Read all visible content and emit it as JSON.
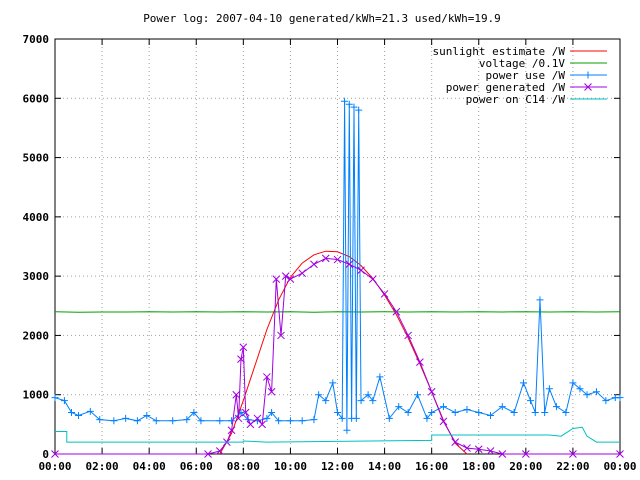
{
  "chart_data": {
    "type": "line",
    "title": "Power log: 2007-04-10 generated/kWh=21.3 used/kWh=19.9",
    "xlabel": "",
    "ylabel": "",
    "xlim": [
      0,
      24
    ],
    "ylim": [
      0,
      7000
    ],
    "x_tick_labels": [
      "00:00",
      "02:00",
      "04:00",
      "06:00",
      "08:00",
      "10:00",
      "12:00",
      "14:00",
      "16:00",
      "18:00",
      "20:00",
      "22:00",
      "00:00"
    ],
    "y_tick_labels": [
      "0",
      "1000",
      "2000",
      "3000",
      "4000",
      "5000",
      "6000",
      "7000"
    ],
    "grid": true,
    "legend_position": "top-right",
    "series": [
      {
        "name": "sunlight estimate /W",
        "color": "#ff0000",
        "marker": "none",
        "points": [
          [
            7.0,
            0
          ],
          [
            7.5,
            350
          ],
          [
            8.0,
            900
          ],
          [
            8.5,
            1500
          ],
          [
            9.0,
            2100
          ],
          [
            9.5,
            2600
          ],
          [
            10.0,
            2980
          ],
          [
            10.5,
            3220
          ],
          [
            11.0,
            3360
          ],
          [
            11.5,
            3420
          ],
          [
            12.0,
            3410
          ],
          [
            12.5,
            3330
          ],
          [
            13.0,
            3180
          ],
          [
            13.5,
            2960
          ],
          [
            14.0,
            2680
          ],
          [
            14.5,
            2350
          ],
          [
            15.0,
            1960
          ],
          [
            15.5,
            1520
          ],
          [
            16.0,
            1050
          ],
          [
            16.5,
            570
          ],
          [
            17.0,
            180
          ],
          [
            17.5,
            0
          ]
        ]
      },
      {
        "name": "voltage /0.1V",
        "color": "#00a000",
        "marker": "none",
        "points": [
          [
            0,
            2400
          ],
          [
            1,
            2390
          ],
          [
            2,
            2395
          ],
          [
            3,
            2395
          ],
          [
            4,
            2400
          ],
          [
            5,
            2395
          ],
          [
            6,
            2400
          ],
          [
            7,
            2395
          ],
          [
            8,
            2400
          ],
          [
            9,
            2395
          ],
          [
            10,
            2400
          ],
          [
            11,
            2390
          ],
          [
            12,
            2400
          ],
          [
            13,
            2395
          ],
          [
            14,
            2400
          ],
          [
            15,
            2395
          ],
          [
            16,
            2400
          ],
          [
            17,
            2395
          ],
          [
            18,
            2400
          ],
          [
            19,
            2395
          ],
          [
            20,
            2400
          ],
          [
            21,
            2395
          ],
          [
            22,
            2400
          ],
          [
            23,
            2395
          ],
          [
            24,
            2400
          ]
        ]
      },
      {
        "name": "power use /W",
        "color": "#0080ff",
        "marker": "plus",
        "points": [
          [
            0,
            950
          ],
          [
            0.4,
            900
          ],
          [
            0.7,
            700
          ],
          [
            1.0,
            650
          ],
          [
            1.5,
            720
          ],
          [
            1.9,
            580
          ],
          [
            2.5,
            560
          ],
          [
            3.0,
            600
          ],
          [
            3.5,
            560
          ],
          [
            3.9,
            650
          ],
          [
            4.3,
            560
          ],
          [
            5.0,
            560
          ],
          [
            5.6,
            580
          ],
          [
            5.9,
            700
          ],
          [
            6.2,
            560
          ],
          [
            7.0,
            560
          ],
          [
            7.5,
            560
          ],
          [
            7.9,
            700
          ],
          [
            8.2,
            580
          ],
          [
            8.6,
            560
          ],
          [
            9.0,
            600
          ],
          [
            9.2,
            700
          ],
          [
            9.5,
            560
          ],
          [
            10.0,
            560
          ],
          [
            10.5,
            560
          ],
          [
            11.0,
            580
          ],
          [
            11.2,
            1000
          ],
          [
            11.5,
            900
          ],
          [
            11.8,
            1200
          ],
          [
            12.0,
            700
          ],
          [
            12.2,
            600
          ],
          [
            12.3,
            5950
          ],
          [
            12.4,
            400
          ],
          [
            12.5,
            5900
          ],
          [
            12.6,
            600
          ],
          [
            12.7,
            5850
          ],
          [
            12.8,
            600
          ],
          [
            12.9,
            5800
          ],
          [
            13.0,
            900
          ],
          [
            13.3,
            1000
          ],
          [
            13.5,
            900
          ],
          [
            13.8,
            1300
          ],
          [
            14.2,
            600
          ],
          [
            14.6,
            800
          ],
          [
            15.0,
            700
          ],
          [
            15.4,
            1000
          ],
          [
            15.8,
            600
          ],
          [
            16.0,
            700
          ],
          [
            16.5,
            800
          ],
          [
            17.0,
            700
          ],
          [
            17.5,
            750
          ],
          [
            18.0,
            700
          ],
          [
            18.5,
            650
          ],
          [
            19.0,
            800
          ],
          [
            19.5,
            700
          ],
          [
            19.9,
            1200
          ],
          [
            20.2,
            900
          ],
          [
            20.4,
            700
          ],
          [
            20.6,
            2600
          ],
          [
            20.8,
            700
          ],
          [
            21.0,
            1100
          ],
          [
            21.3,
            800
          ],
          [
            21.7,
            700
          ],
          [
            22.0,
            1200
          ],
          [
            22.3,
            1100
          ],
          [
            22.6,
            1000
          ],
          [
            23.0,
            1050
          ],
          [
            23.4,
            900
          ],
          [
            23.8,
            950
          ],
          [
            24,
            950
          ]
        ]
      },
      {
        "name": "power generated /W",
        "color": "#a000e0",
        "marker": "x",
        "points": [
          [
            0,
            0
          ],
          [
            6.5,
            0
          ],
          [
            7.0,
            50
          ],
          [
            7.3,
            200
          ],
          [
            7.5,
            400
          ],
          [
            7.7,
            1000
          ],
          [
            7.8,
            600
          ],
          [
            7.9,
            1600
          ],
          [
            8.0,
            1800
          ],
          [
            8.1,
            700
          ],
          [
            8.3,
            500
          ],
          [
            8.6,
            600
          ],
          [
            8.8,
            500
          ],
          [
            9.0,
            1300
          ],
          [
            9.2,
            1050
          ],
          [
            9.4,
            2950
          ],
          [
            9.6,
            2000
          ],
          [
            9.8,
            3000
          ],
          [
            10.0,
            2950
          ],
          [
            10.5,
            3050
          ],
          [
            11.0,
            3200
          ],
          [
            11.5,
            3300
          ],
          [
            12.0,
            3280
          ],
          [
            12.5,
            3200
          ],
          [
            13.0,
            3100
          ],
          [
            13.5,
            2950
          ],
          [
            14.0,
            2700
          ],
          [
            14.5,
            2400
          ],
          [
            15.0,
            2000
          ],
          [
            15.5,
            1550
          ],
          [
            16.0,
            1050
          ],
          [
            16.5,
            550
          ],
          [
            17.0,
            200
          ],
          [
            17.5,
            100
          ],
          [
            18.0,
            80
          ],
          [
            18.5,
            50
          ],
          [
            19.0,
            0
          ],
          [
            20.0,
            0
          ],
          [
            22.0,
            0
          ],
          [
            24,
            0
          ]
        ]
      },
      {
        "name": "power on C14 /W",
        "color": "#00c0c0",
        "marker": "none",
        "points": [
          [
            0,
            380
          ],
          [
            0.5,
            380
          ],
          [
            0.5,
            200
          ],
          [
            8.0,
            200
          ],
          [
            8.0,
            220
          ],
          [
            9.0,
            200
          ],
          [
            16.0,
            230
          ],
          [
            16.0,
            320
          ],
          [
            21.0,
            320
          ],
          [
            21.5,
            300
          ],
          [
            22.0,
            430
          ],
          [
            22.4,
            450
          ],
          [
            22.6,
            300
          ],
          [
            23.0,
            200
          ],
          [
            24,
            200
          ]
        ]
      }
    ]
  }
}
